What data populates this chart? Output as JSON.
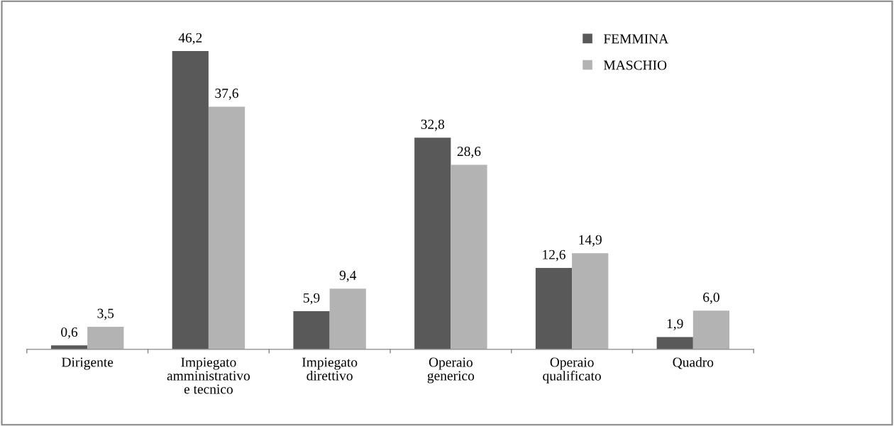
{
  "chart_data": {
    "type": "bar",
    "categories": [
      "Dirigente",
      "Impiegato\namministrativo\ne tecnico",
      "Impiegato\ndirettivo",
      "Operaio\ngenerico",
      "Operaio\nqualificato",
      "Quadro"
    ],
    "series": [
      {
        "name": "FEMMINA",
        "color": "#595959",
        "values": [
          0.6,
          46.2,
          5.9,
          32.8,
          12.6,
          1.9
        ],
        "value_labels": [
          "0,6",
          "46,2",
          "5,9",
          "32,8",
          "12,6",
          "1,9"
        ]
      },
      {
        "name": "MASCHIO",
        "color": "#b3b3b3",
        "values": [
          3.5,
          37.6,
          9.4,
          28.6,
          14.9,
          6.0
        ],
        "value_labels": [
          "3,5",
          "37,6",
          "9,4",
          "28,6",
          "14,9",
          "6,0"
        ]
      }
    ],
    "legend": "top right",
    "tick_labels": "x"
  }
}
